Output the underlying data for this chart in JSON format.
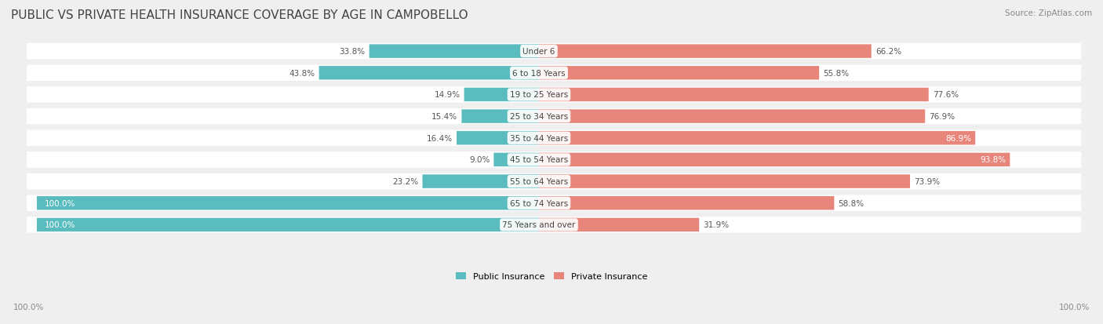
{
  "title": "PUBLIC VS PRIVATE HEALTH INSURANCE COVERAGE BY AGE IN CAMPOBELLO",
  "source": "Source: ZipAtlas.com",
  "categories": [
    "Under 6",
    "6 to 18 Years",
    "19 to 25 Years",
    "25 to 34 Years",
    "35 to 44 Years",
    "45 to 54 Years",
    "55 to 64 Years",
    "65 to 74 Years",
    "75 Years and over"
  ],
  "public_values": [
    33.8,
    43.8,
    14.9,
    15.4,
    16.4,
    9.0,
    23.2,
    100.0,
    100.0
  ],
  "private_values": [
    66.2,
    55.8,
    77.6,
    76.9,
    86.9,
    93.8,
    73.9,
    58.8,
    31.9
  ],
  "public_color": "#5bbcbf",
  "private_color": "#e8857a",
  "bg_color": "#efefef",
  "bar_height": 0.62,
  "axis_label_left": "100.0%",
  "axis_label_right": "100.0%",
  "title_fontsize": 11,
  "category_fontsize": 7.5,
  "value_fontsize": 7.5,
  "source_fontsize": 7.5,
  "legend_fontsize": 8,
  "public_label": "Public Insurance",
  "private_label": "Private Insurance"
}
